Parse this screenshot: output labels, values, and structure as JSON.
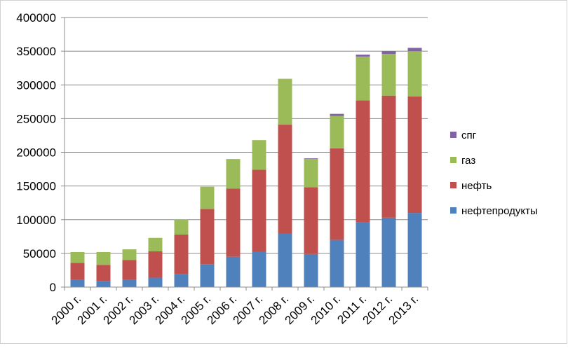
{
  "chart_data": {
    "type": "bar",
    "stacked": true,
    "categories": [
      "2000 г.",
      "2001 г.",
      "2002 г.",
      "2003 г.",
      "2004 г.",
      "2005 г.",
      "2006 г.",
      "2007 г.",
      "2008 г.",
      "2009 г.",
      "2010 г.",
      "2011 г.",
      "2012 г.",
      "2013 г."
    ],
    "series": [
      {
        "name": "нефтепродукты",
        "color": "#4F81BD",
        "values": [
          11000,
          9000,
          11000,
          14000,
          19000,
          34000,
          45000,
          52000,
          79000,
          49000,
          70000,
          96000,
          103000,
          110000
        ]
      },
      {
        "name": "нефть",
        "color": "#C0504D",
        "values": [
          25000,
          24000,
          29000,
          39000,
          59000,
          82000,
          101000,
          122000,
          162000,
          99000,
          136000,
          181000,
          181000,
          173000
        ]
      },
      {
        "name": "газ",
        "color": "#9BBB59",
        "values": [
          16000,
          19000,
          16000,
          20000,
          22000,
          33000,
          44000,
          44000,
          68000,
          42000,
          48000,
          65000,
          62000,
          67000
        ]
      },
      {
        "name": "спг",
        "color": "#8064A2",
        "values": [
          0,
          0,
          0,
          0,
          0,
          0,
          0,
          0,
          0,
          1000,
          3000,
          3000,
          4000,
          5000
        ]
      }
    ],
    "yticks": [
      "0",
      "50000",
      "100000",
      "150000",
      "200000",
      "250000",
      "300000",
      "350000",
      "400000"
    ],
    "ylim": [
      0,
      400000
    ],
    "grid": true,
    "legend": "right",
    "legend_order": [
      "спг",
      "газ",
      "нефть",
      "нефтепродукты"
    ],
    "title": "",
    "xlabel": "",
    "ylabel": ""
  }
}
